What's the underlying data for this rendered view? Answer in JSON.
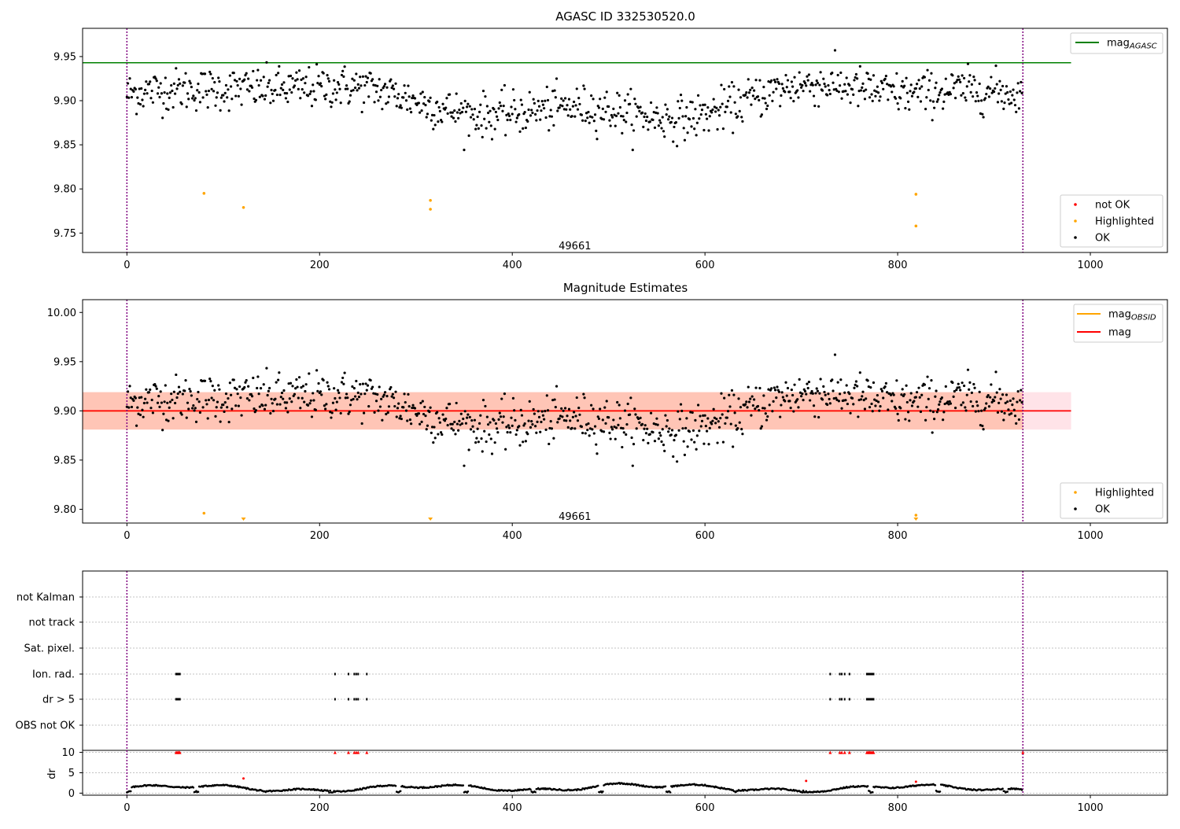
{
  "figure": {
    "top_title": "AGASC ID 332530520.0",
    "middle_title": "Magnitude Estimates",
    "obsid_annotation": "49661",
    "bottom_ylabel": "dr",
    "colors": {
      "ok": "#000000",
      "highlighted": "#ffa500",
      "not_ok": "#ff0000",
      "agasc_line": "#008000",
      "mag_line": "#ff0000",
      "obsid_line": "#ffa500",
      "band_outer": "#ffc0cb",
      "band_inner": "#ffa07a",
      "vline": "#800080"
    }
  },
  "chart_data": [
    {
      "type": "scatter",
      "title": "AGASC ID 332530520.0",
      "xlim": [
        -46,
        1080
      ],
      "ylim": [
        9.728,
        9.982
      ],
      "xticks": [
        0,
        200,
        400,
        600,
        800,
        1000
      ],
      "yticks": [
        9.75,
        9.8,
        9.85,
        9.9,
        9.95
      ],
      "ytick_labels": [
        "9.75",
        "9.80",
        "9.85",
        "9.90",
        "9.95"
      ],
      "hlines": [
        {
          "name": "mag_AGASC",
          "y": 9.943,
          "color": "#008000",
          "xrange": [
            -46,
            980
          ]
        }
      ],
      "vlines": [
        0,
        930
      ],
      "annotation": {
        "text": "49661",
        "x": 465,
        "y": 9.736
      },
      "ok_series": {
        "name": "OK",
        "n": 930,
        "base": 9.9,
        "noise": 0.016
      },
      "highlighted_points": [
        {
          "x": 80,
          "y": 9.795
        },
        {
          "x": 121,
          "y": 9.779
        },
        {
          "x": 315,
          "y": 9.787
        },
        {
          "x": 315,
          "y": 9.777
        },
        {
          "x": 819,
          "y": 9.794
        },
        {
          "x": 819,
          "y": 9.758
        }
      ],
      "legend_upper": [
        {
          "label": "mag",
          "sub": "AGASC",
          "color": "#008000",
          "kind": "line"
        }
      ],
      "legend_lower": [
        {
          "label": "not OK",
          "color": "#ff0000",
          "kind": "dot"
        },
        {
          "label": "Highlighted",
          "color": "#ffa500",
          "kind": "dot"
        },
        {
          "label": "OK",
          "color": "#000000",
          "kind": "dot"
        }
      ]
    },
    {
      "type": "scatter",
      "title": "Magnitude Estimates",
      "xlim": [
        -46,
        1080
      ],
      "ylim": [
        9.786,
        10.013
      ],
      "xticks": [
        0,
        200,
        400,
        600,
        800,
        1000
      ],
      "yticks": [
        9.8,
        9.85,
        9.9,
        9.95,
        10.0
      ],
      "ytick_labels": [
        "9.80",
        "9.85",
        "9.90",
        "9.95",
        "10.00"
      ],
      "hlines": [
        {
          "name": "mag_OBSID",
          "y": 9.9,
          "color": "#ffa500",
          "xrange": [
            -46,
            930
          ]
        },
        {
          "name": "mag",
          "y": 9.9,
          "color": "#ff0000",
          "xrange": [
            -46,
            980
          ]
        }
      ],
      "bands": [
        {
          "y0": 9.881,
          "y1": 9.919,
          "color": "#ffc0cb",
          "xrange": [
            -46,
            980
          ]
        },
        {
          "y0": 9.881,
          "y1": 9.919,
          "color": "#ffa07a",
          "xrange": [
            -46,
            930
          ]
        }
      ],
      "vlines": [
        0,
        930
      ],
      "annotation": {
        "text": "49661",
        "x": 465,
        "y": 9.793
      },
      "highlighted_points": [
        {
          "x": 80,
          "y": 9.796
        },
        {
          "x": 819,
          "y": 9.794
        }
      ],
      "highlighted_clipped_x": [
        121,
        315,
        819
      ],
      "legend_upper": [
        {
          "label": "mag",
          "sub": "OBSID",
          "color": "#ffa500",
          "kind": "line"
        },
        {
          "label": "mag",
          "sub": "",
          "color": "#ff0000",
          "kind": "line"
        }
      ],
      "legend_lower": [
        {
          "label": "Highlighted",
          "color": "#ffa500",
          "kind": "dot"
        },
        {
          "label": "OK",
          "color": "#000000",
          "kind": "dot"
        }
      ]
    },
    {
      "type": "scatter",
      "xlim": [
        -46,
        1080
      ],
      "flag_rows": [
        "not Kalman",
        "not track",
        "Sat. pixel.",
        "Ion. rad.",
        "dr > 5",
        "OBS not OK"
      ],
      "flag_events_x": [
        51,
        52,
        53,
        54,
        55,
        216,
        230,
        236,
        238,
        240,
        249,
        730,
        740,
        742,
        745,
        750,
        768,
        769,
        770,
        771,
        772,
        773,
        774,
        775
      ],
      "flag_rows_with_events": [
        "Ion. rad.",
        "dr > 5"
      ],
      "dr_axis": {
        "ylabel": "dr",
        "ylim": [
          -0.5,
          10.5
        ],
        "yticks": [
          0,
          5,
          10
        ],
        "ytick_labels": [
          "0",
          "5",
          "10"
        ]
      },
      "dr_red_points": [
        {
          "x": 121,
          "y": 3.6
        },
        {
          "x": 705,
          "y": 3.0
        },
        {
          "x": 819,
          "y": 2.8
        }
      ],
      "vlines": [
        0,
        930
      ]
    }
  ]
}
